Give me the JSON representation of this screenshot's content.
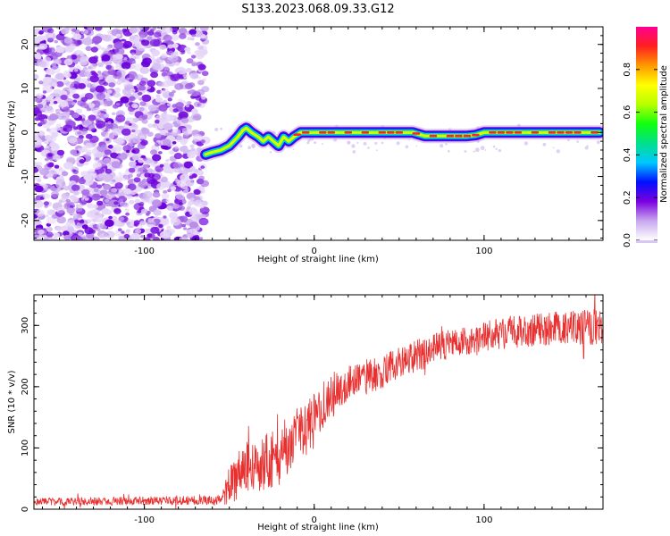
{
  "figure_title": "S133.2023.068.09.33.G12",
  "chart_data": [
    {
      "type": "heatmap",
      "title": "S133.2023.068.09.33.G12",
      "xlabel": "Height of straight line (km)",
      "ylabel": "Frequency (Hz)",
      "xlim": [
        -165,
        170
      ],
      "ylim": [
        -24.5,
        24
      ],
      "xticks": [
        -100,
        0,
        100
      ],
      "yticks": [
        -20,
        -10,
        0,
        10,
        20
      ],
      "noise_region_x": [
        -165,
        -64
      ],
      "signal_trace": {
        "x": [
          -64,
          -60,
          -55,
          -50,
          -45,
          -42,
          -40,
          -37,
          -33,
          -30,
          -27,
          -24,
          -21,
          -18,
          -15,
          -12,
          -8,
          0,
          10,
          20,
          30,
          40,
          50,
          58,
          65,
          70,
          80,
          90,
          95,
          100,
          110,
          120,
          130,
          140,
          150,
          160,
          168
        ],
        "y": [
          -5,
          -4.5,
          -4,
          -3,
          -1,
          0.5,
          1,
          0,
          -1,
          -2,
          -1,
          -2,
          -3,
          -1,
          -2,
          -1,
          0,
          0,
          0,
          0,
          0,
          0,
          0,
          0,
          -0.8,
          -0.8,
          -0.8,
          -0.8,
          -0.6,
          0,
          0,
          0,
          0,
          0,
          0,
          0,
          0
        ]
      },
      "colorbar": {
        "label": "Normalized spectral amplitude",
        "range": [
          0,
          1
        ],
        "ticks": [
          0.0,
          0.2,
          0.4,
          0.6,
          0.8
        ],
        "tick_labels": [
          "0.0",
          "0.2",
          "0.4",
          "0.6",
          "0.8"
        ],
        "colors": [
          "#ffffff",
          "#c8a8ee",
          "#7b00e0",
          "#0010ff",
          "#00c8ff",
          "#00e08a",
          "#10ff10",
          "#b6ff00",
          "#ffff00",
          "#ff9900",
          "#ff2020",
          "#ff0090"
        ]
      }
    },
    {
      "type": "line",
      "xlabel": "Height of straight line (km)",
      "ylabel": "SNR (10 * v/v)",
      "xlim": [
        -165,
        170
      ],
      "ylim": [
        0,
        350
      ],
      "xticks": [
        -100,
        0,
        100
      ],
      "yticks": [
        0,
        100,
        200,
        300
      ],
      "color": "#e83030",
      "trend": {
        "x": [
          -165,
          -55,
          -50,
          -40,
          -30,
          -20,
          -10,
          0,
          10,
          20,
          40,
          60,
          80,
          100,
          120,
          140,
          170
        ],
        "y": [
          12,
          15,
          40,
          70,
          75,
          90,
          120,
          145,
          185,
          205,
          225,
          250,
          270,
          283,
          290,
          295,
          298
        ]
      },
      "noise_amplitude": {
        "x": [
          -165,
          -55,
          -50,
          -20,
          0,
          20,
          80,
          170
        ],
        "y": [
          6,
          8,
          35,
          50,
          45,
          30,
          25,
          30
        ]
      }
    }
  ]
}
